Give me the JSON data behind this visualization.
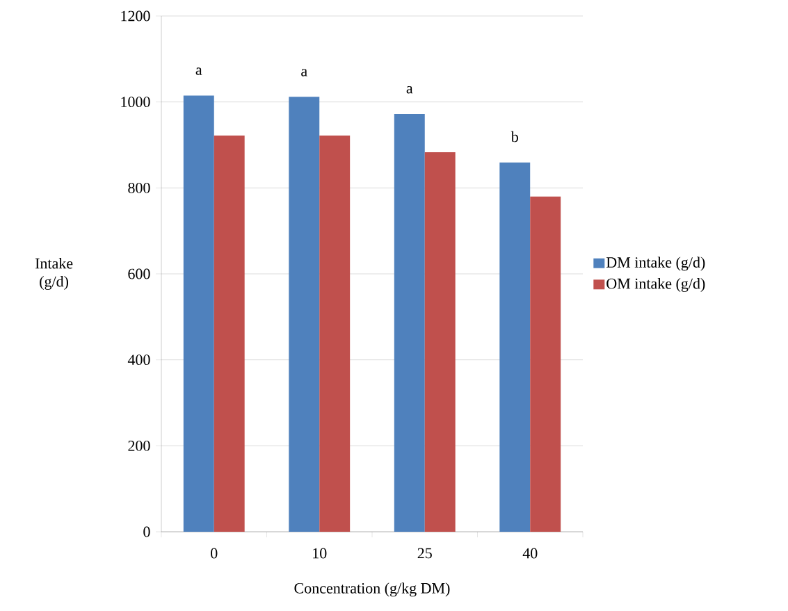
{
  "chart_data": {
    "type": "bar",
    "xlabel": "Concentration (g/kg DM)",
    "ylabel": "Intake (g/d)",
    "categories": [
      "0",
      "10",
      "25",
      "40"
    ],
    "series": [
      {
        "name": "DM intake (g/d)",
        "color": "#4f81bd",
        "values": [
          1015,
          1012,
          972,
          859
        ]
      },
      {
        "name": "OM intake (g/d)",
        "color": "#c0504d",
        "values": [
          922,
          922,
          883,
          780
        ]
      }
    ],
    "ylim": [
      0,
      1200
    ],
    "yticks": [
      0,
      200,
      400,
      600,
      800,
      1000,
      1200
    ],
    "grid": "y",
    "legend": "right",
    "annotations": [
      "a",
      "a",
      "a",
      "b"
    ]
  }
}
